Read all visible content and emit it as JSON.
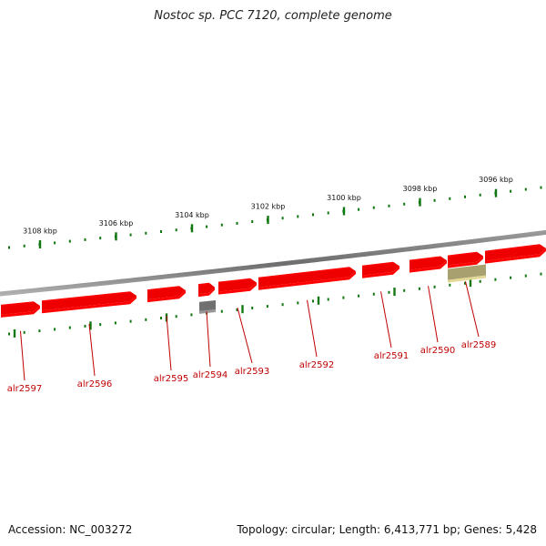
{
  "header": {
    "title": "Nostoc sp. PCC 7120, complete genome"
  },
  "footer": {
    "accession": "Accession: NC_003272",
    "summary": "Topology: circular; Length: 6,413,771 bp; Genes: 5,428"
  },
  "scale": {
    "unit": "kbp",
    "ticks": [
      {
        "kbp": 3108,
        "label": "3108 kbp"
      },
      {
        "kbp": 3106,
        "label": "3106 kbp"
      },
      {
        "kbp": 3104,
        "label": "3104 kbp"
      },
      {
        "kbp": 3102,
        "label": "3102 kbp"
      },
      {
        "kbp": 3100,
        "label": "3100 kbp"
      },
      {
        "kbp": 3098,
        "label": "3098 kbp"
      },
      {
        "kbp": 3096,
        "label": "3096 kbp"
      }
    ]
  },
  "genes": [
    {
      "name": "alr2597",
      "type": "cds"
    },
    {
      "name": "alr2596",
      "type": "cds"
    },
    {
      "name": "alr2595",
      "type": "cds"
    },
    {
      "name": "alr2594",
      "type": "cds"
    },
    {
      "name": "alr2593",
      "type": "cds"
    },
    {
      "name": "alr2592",
      "type": "cds"
    },
    {
      "name": "alr2591",
      "type": "cds"
    },
    {
      "name": "alr2590",
      "type": "cds"
    },
    {
      "name": "alr2589",
      "type": "cds"
    }
  ],
  "colors": {
    "cds": "#ee0000",
    "backbone": "#808080",
    "ticks": "#117711",
    "labels": "#c00000"
  }
}
